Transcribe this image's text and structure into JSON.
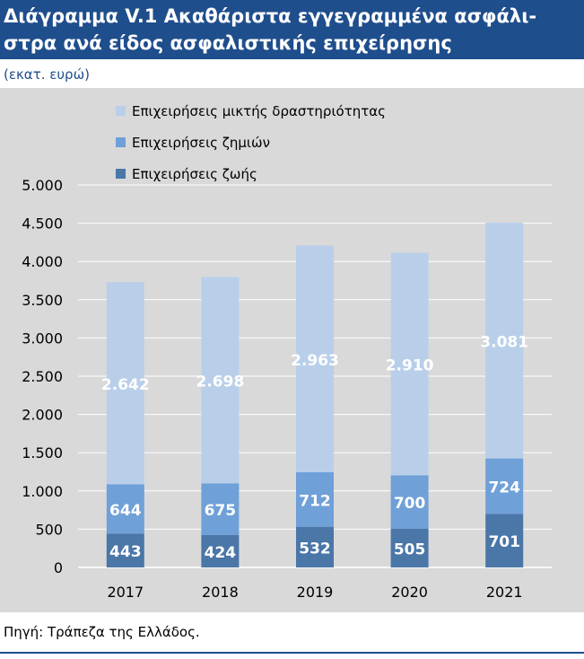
{
  "header": {
    "title_line1": "Διάγραμμα V.1 Ακαθάριστα εγγεγραμμένα ασφάλι-",
    "title_line2": "στρα ανά είδος ασφαλιστικής επιχείρησης"
  },
  "unit_label": "(εκατ. ευρώ)",
  "source": "Πηγή: Τράπεζα της Ελλάδος.",
  "colors": {
    "header_bg": "#1f4e8c",
    "plot_bg": "#d9d9d9",
    "life": "#4a76a8",
    "nonlife": "#6fa0d8",
    "mixed": "#b9cfe9"
  },
  "chart_data": {
    "type": "bar",
    "stacked": true,
    "categories": [
      "2017",
      "2018",
      "2019",
      "2020",
      "2021"
    ],
    "series": [
      {
        "name": "Επιχειρήσεις ζωής",
        "values": [
          443,
          424,
          532,
          505,
          701
        ],
        "color": "#4a76a8",
        "labels": [
          "443",
          "424",
          "532",
          "505",
          "701"
        ]
      },
      {
        "name": "Επιχειρήσεις ζημιών",
        "values": [
          644,
          675,
          712,
          700,
          724
        ],
        "color": "#6fa0d8",
        "labels": [
          "644",
          "675",
          "712",
          "700",
          "724"
        ]
      },
      {
        "name": "Επιχειρήσεις μικτής δραστηριότητας",
        "values": [
          2642,
          2698,
          2963,
          2910,
          3081
        ],
        "color": "#b9cfe9",
        "labels": [
          "2.642",
          "2.698",
          "2.963",
          "2.910",
          "3.081"
        ]
      }
    ],
    "ylim": [
      0,
      5000
    ],
    "yticks": [
      0,
      500,
      1000,
      1500,
      2000,
      2500,
      3000,
      3500,
      4000,
      4500,
      5000
    ],
    "ytick_labels": [
      "0",
      "500",
      "1.000",
      "1.500",
      "2.000",
      "2.500",
      "3.000",
      "3.500",
      "4.000",
      "4.500",
      "5.000"
    ],
    "legend_order": [
      "Επιχειρήσεις μικτής δραστηριότητας",
      "Επιχειρήσεις ζημιών",
      "Επιχειρήσεις ζωής"
    ],
    "legend_position": "top-left",
    "grid": true
  }
}
